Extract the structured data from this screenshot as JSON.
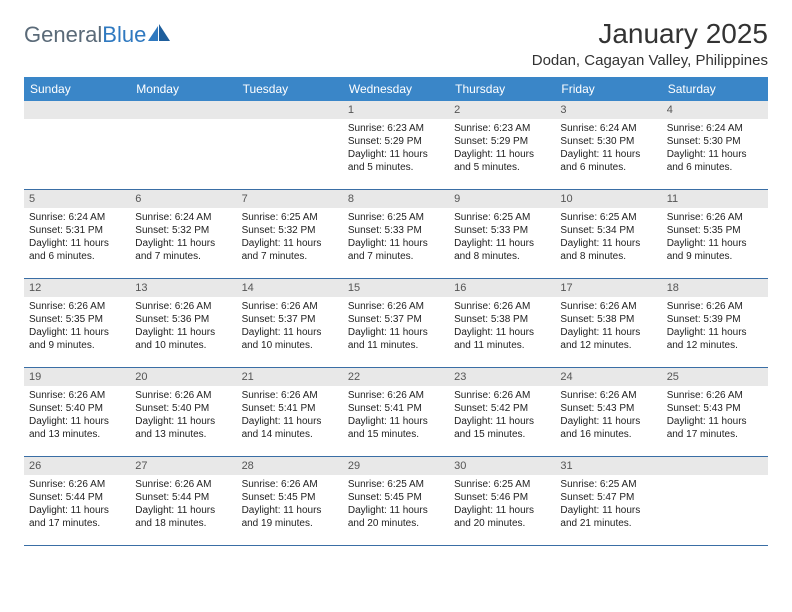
{
  "logo": {
    "word1": "General",
    "word2": "Blue"
  },
  "title": "January 2025",
  "location": "Dodan, Cagayan Valley, Philippines",
  "dow": [
    "Sunday",
    "Monday",
    "Tuesday",
    "Wednesday",
    "Thursday",
    "Friday",
    "Saturday"
  ],
  "colors": {
    "header_bar": "#3a86c8",
    "header_text": "#ffffff",
    "daynum_bg": "#e8e8e8",
    "week_border": "#3a6ea5",
    "logo_gray": "#5a6a78",
    "logo_blue": "#2f79c0"
  },
  "weeks": [
    [
      {
        "n": "",
        "sr": "",
        "ss": "",
        "dl1": "",
        "dl2": ""
      },
      {
        "n": "",
        "sr": "",
        "ss": "",
        "dl1": "",
        "dl2": ""
      },
      {
        "n": "",
        "sr": "",
        "ss": "",
        "dl1": "",
        "dl2": ""
      },
      {
        "n": "1",
        "sr": "Sunrise: 6:23 AM",
        "ss": "Sunset: 5:29 PM",
        "dl1": "Daylight: 11 hours",
        "dl2": "and 5 minutes."
      },
      {
        "n": "2",
        "sr": "Sunrise: 6:23 AM",
        "ss": "Sunset: 5:29 PM",
        "dl1": "Daylight: 11 hours",
        "dl2": "and 5 minutes."
      },
      {
        "n": "3",
        "sr": "Sunrise: 6:24 AM",
        "ss": "Sunset: 5:30 PM",
        "dl1": "Daylight: 11 hours",
        "dl2": "and 6 minutes."
      },
      {
        "n": "4",
        "sr": "Sunrise: 6:24 AM",
        "ss": "Sunset: 5:30 PM",
        "dl1": "Daylight: 11 hours",
        "dl2": "and 6 minutes."
      }
    ],
    [
      {
        "n": "5",
        "sr": "Sunrise: 6:24 AM",
        "ss": "Sunset: 5:31 PM",
        "dl1": "Daylight: 11 hours",
        "dl2": "and 6 minutes."
      },
      {
        "n": "6",
        "sr": "Sunrise: 6:24 AM",
        "ss": "Sunset: 5:32 PM",
        "dl1": "Daylight: 11 hours",
        "dl2": "and 7 minutes."
      },
      {
        "n": "7",
        "sr": "Sunrise: 6:25 AM",
        "ss": "Sunset: 5:32 PM",
        "dl1": "Daylight: 11 hours",
        "dl2": "and 7 minutes."
      },
      {
        "n": "8",
        "sr": "Sunrise: 6:25 AM",
        "ss": "Sunset: 5:33 PM",
        "dl1": "Daylight: 11 hours",
        "dl2": "and 7 minutes."
      },
      {
        "n": "9",
        "sr": "Sunrise: 6:25 AM",
        "ss": "Sunset: 5:33 PM",
        "dl1": "Daylight: 11 hours",
        "dl2": "and 8 minutes."
      },
      {
        "n": "10",
        "sr": "Sunrise: 6:25 AM",
        "ss": "Sunset: 5:34 PM",
        "dl1": "Daylight: 11 hours",
        "dl2": "and 8 minutes."
      },
      {
        "n": "11",
        "sr": "Sunrise: 6:26 AM",
        "ss": "Sunset: 5:35 PM",
        "dl1": "Daylight: 11 hours",
        "dl2": "and 9 minutes."
      }
    ],
    [
      {
        "n": "12",
        "sr": "Sunrise: 6:26 AM",
        "ss": "Sunset: 5:35 PM",
        "dl1": "Daylight: 11 hours",
        "dl2": "and 9 minutes."
      },
      {
        "n": "13",
        "sr": "Sunrise: 6:26 AM",
        "ss": "Sunset: 5:36 PM",
        "dl1": "Daylight: 11 hours",
        "dl2": "and 10 minutes."
      },
      {
        "n": "14",
        "sr": "Sunrise: 6:26 AM",
        "ss": "Sunset: 5:37 PM",
        "dl1": "Daylight: 11 hours",
        "dl2": "and 10 minutes."
      },
      {
        "n": "15",
        "sr": "Sunrise: 6:26 AM",
        "ss": "Sunset: 5:37 PM",
        "dl1": "Daylight: 11 hours",
        "dl2": "and 11 minutes."
      },
      {
        "n": "16",
        "sr": "Sunrise: 6:26 AM",
        "ss": "Sunset: 5:38 PM",
        "dl1": "Daylight: 11 hours",
        "dl2": "and 11 minutes."
      },
      {
        "n": "17",
        "sr": "Sunrise: 6:26 AM",
        "ss": "Sunset: 5:38 PM",
        "dl1": "Daylight: 11 hours",
        "dl2": "and 12 minutes."
      },
      {
        "n": "18",
        "sr": "Sunrise: 6:26 AM",
        "ss": "Sunset: 5:39 PM",
        "dl1": "Daylight: 11 hours",
        "dl2": "and 12 minutes."
      }
    ],
    [
      {
        "n": "19",
        "sr": "Sunrise: 6:26 AM",
        "ss": "Sunset: 5:40 PM",
        "dl1": "Daylight: 11 hours",
        "dl2": "and 13 minutes."
      },
      {
        "n": "20",
        "sr": "Sunrise: 6:26 AM",
        "ss": "Sunset: 5:40 PM",
        "dl1": "Daylight: 11 hours",
        "dl2": "and 13 minutes."
      },
      {
        "n": "21",
        "sr": "Sunrise: 6:26 AM",
        "ss": "Sunset: 5:41 PM",
        "dl1": "Daylight: 11 hours",
        "dl2": "and 14 minutes."
      },
      {
        "n": "22",
        "sr": "Sunrise: 6:26 AM",
        "ss": "Sunset: 5:41 PM",
        "dl1": "Daylight: 11 hours",
        "dl2": "and 15 minutes."
      },
      {
        "n": "23",
        "sr": "Sunrise: 6:26 AM",
        "ss": "Sunset: 5:42 PM",
        "dl1": "Daylight: 11 hours",
        "dl2": "and 15 minutes."
      },
      {
        "n": "24",
        "sr": "Sunrise: 6:26 AM",
        "ss": "Sunset: 5:43 PM",
        "dl1": "Daylight: 11 hours",
        "dl2": "and 16 minutes."
      },
      {
        "n": "25",
        "sr": "Sunrise: 6:26 AM",
        "ss": "Sunset: 5:43 PM",
        "dl1": "Daylight: 11 hours",
        "dl2": "and 17 minutes."
      }
    ],
    [
      {
        "n": "26",
        "sr": "Sunrise: 6:26 AM",
        "ss": "Sunset: 5:44 PM",
        "dl1": "Daylight: 11 hours",
        "dl2": "and 17 minutes."
      },
      {
        "n": "27",
        "sr": "Sunrise: 6:26 AM",
        "ss": "Sunset: 5:44 PM",
        "dl1": "Daylight: 11 hours",
        "dl2": "and 18 minutes."
      },
      {
        "n": "28",
        "sr": "Sunrise: 6:26 AM",
        "ss": "Sunset: 5:45 PM",
        "dl1": "Daylight: 11 hours",
        "dl2": "and 19 minutes."
      },
      {
        "n": "29",
        "sr": "Sunrise: 6:25 AM",
        "ss": "Sunset: 5:45 PM",
        "dl1": "Daylight: 11 hours",
        "dl2": "and 20 minutes."
      },
      {
        "n": "30",
        "sr": "Sunrise: 6:25 AM",
        "ss": "Sunset: 5:46 PM",
        "dl1": "Daylight: 11 hours",
        "dl2": "and 20 minutes."
      },
      {
        "n": "31",
        "sr": "Sunrise: 6:25 AM",
        "ss": "Sunset: 5:47 PM",
        "dl1": "Daylight: 11 hours",
        "dl2": "and 21 minutes."
      },
      {
        "n": "",
        "sr": "",
        "ss": "",
        "dl1": "",
        "dl2": ""
      }
    ]
  ]
}
